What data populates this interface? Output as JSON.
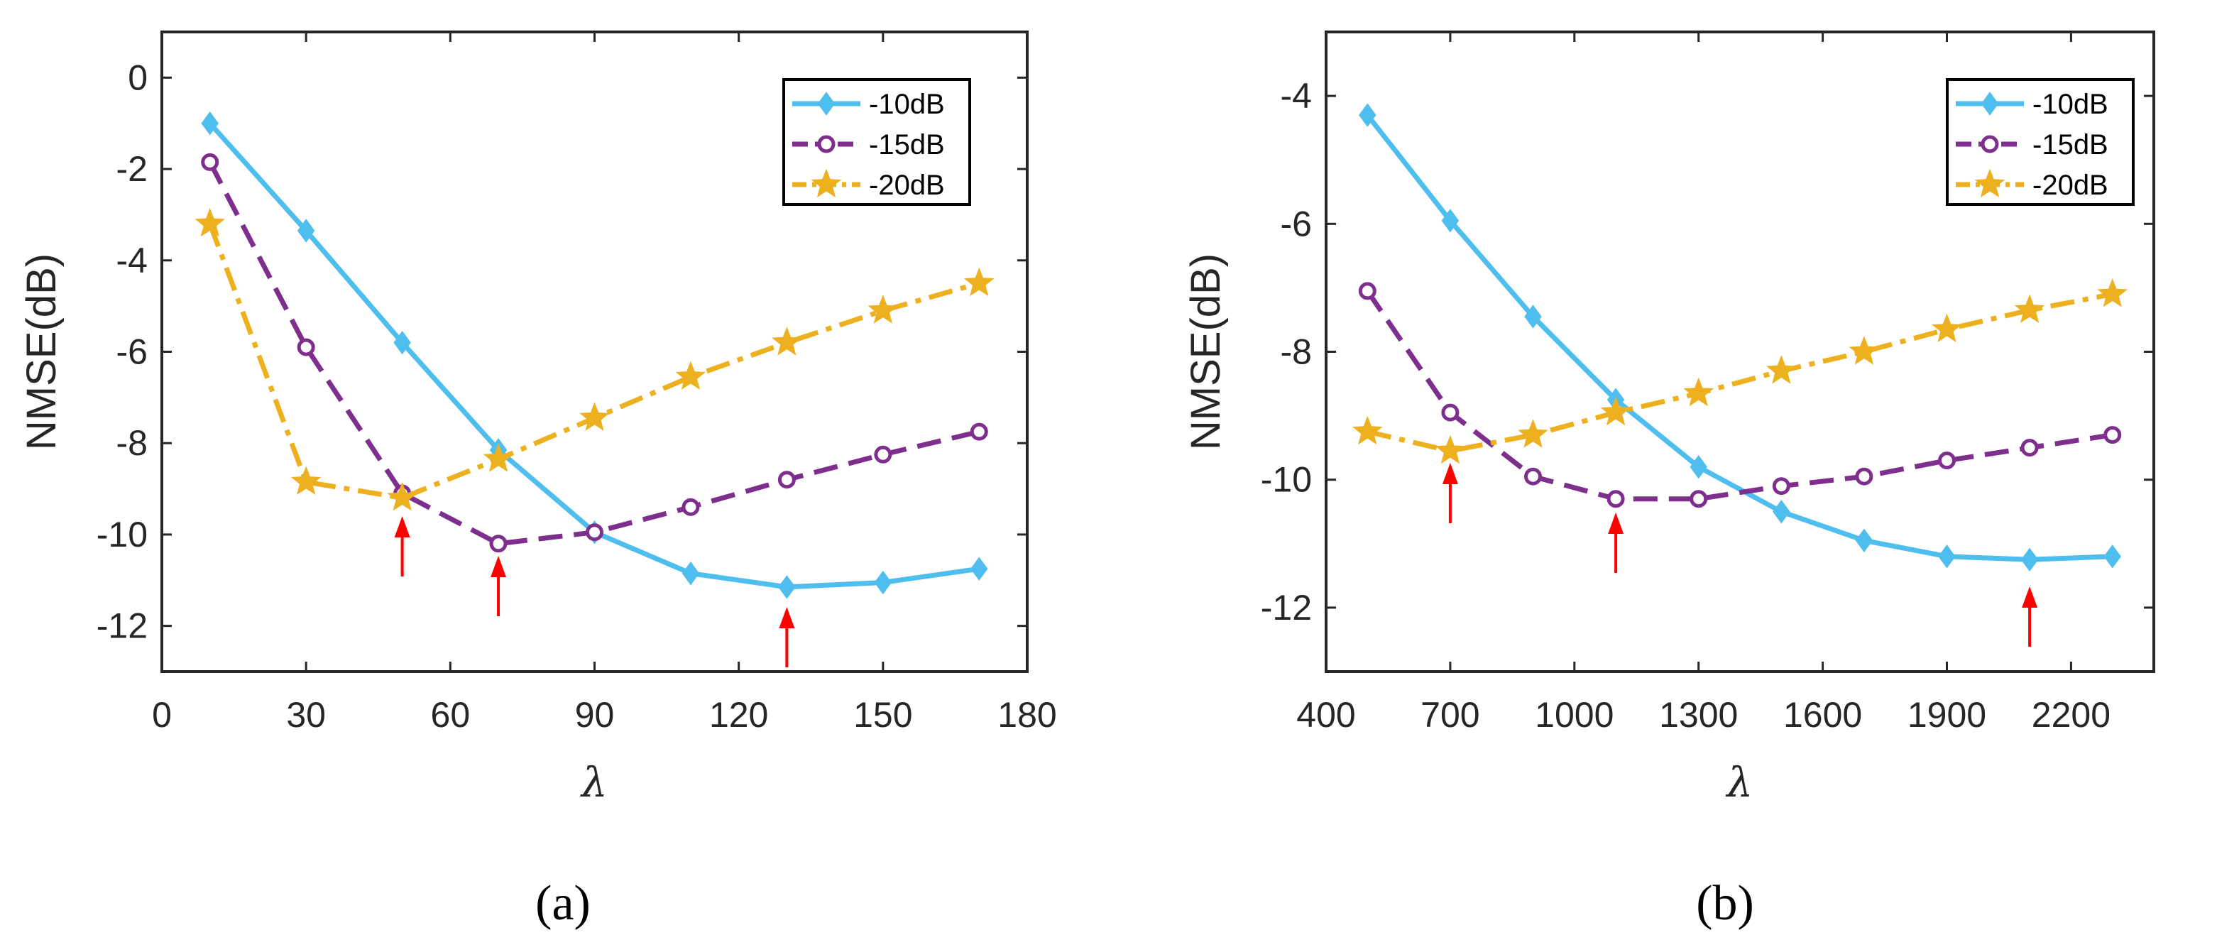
{
  "colors": {
    "-10dB": "#4DBEEE",
    "-15dB": "#7E2F8E",
    "-20dB": "#EDB120",
    "arrow": "#FF0000",
    "axis": "#262626"
  },
  "chart_data": [
    {
      "type": "line",
      "caption": "(a)",
      "xlabel": "λ",
      "ylabel": "NMSE(dB)",
      "xlim": [
        0,
        180
      ],
      "ylim": [
        -13,
        1
      ],
      "xticks": [
        0,
        30,
        60,
        90,
        120,
        150,
        180
      ],
      "yticks": [
        0,
        -2,
        -4,
        -6,
        -8,
        -10,
        -12
      ],
      "legend_position": "top-right",
      "series": [
        {
          "name": "-10dB",
          "marker": "diamond",
          "line": "solid",
          "x": [
            10,
            30,
            50,
            70,
            90,
            110,
            130,
            150,
            170
          ],
          "y": [
            -1.0,
            -3.35,
            -5.8,
            -8.15,
            -9.95,
            -10.85,
            -11.15,
            -11.05,
            -10.75
          ]
        },
        {
          "name": "-15dB",
          "marker": "circle",
          "line": "dashed",
          "x": [
            10,
            30,
            50,
            70,
            90,
            110,
            130,
            150,
            170
          ],
          "y": [
            -1.85,
            -5.9,
            -9.1,
            -10.2,
            -9.95,
            -9.4,
            -8.8,
            -8.25,
            -7.75
          ]
        },
        {
          "name": "-20dB",
          "marker": "star",
          "line": "dashdot",
          "x": [
            10,
            30,
            50,
            70,
            90,
            110,
            130,
            150,
            170
          ],
          "y": [
            -3.2,
            -8.85,
            -9.2,
            -8.35,
            -7.45,
            -6.55,
            -5.8,
            -5.1,
            -4.5
          ]
        }
      ],
      "arrows_at_x": [
        50,
        70,
        130
      ]
    },
    {
      "type": "line",
      "caption": "(b)",
      "xlabel": "λ",
      "ylabel": "NMSE(dB)",
      "xlim": [
        400,
        2400
      ],
      "ylim": [
        -13,
        -3
      ],
      "xticks": [
        400,
        700,
        1000,
        1300,
        1600,
        1900,
        2200
      ],
      "yticks": [
        -4,
        -6,
        -8,
        -10,
        -12
      ],
      "legend_position": "top-right",
      "series": [
        {
          "name": "-10dB",
          "marker": "diamond",
          "line": "solid",
          "x": [
            500,
            700,
            900,
            1100,
            1300,
            1500,
            1700,
            1900,
            2100,
            2300
          ],
          "y": [
            -4.3,
            -5.95,
            -7.45,
            -8.75,
            -9.8,
            -10.5,
            -10.95,
            -11.2,
            -11.25,
            -11.2
          ]
        },
        {
          "name": "-15dB",
          "marker": "circle",
          "line": "dashed",
          "x": [
            500,
            700,
            900,
            1100,
            1300,
            1500,
            1700,
            1900,
            2100,
            2300
          ],
          "y": [
            -7.05,
            -8.95,
            -9.95,
            -10.3,
            -10.3,
            -10.1,
            -9.95,
            -9.7,
            -9.5,
            -9.3
          ]
        },
        {
          "name": "-20dB",
          "marker": "star",
          "line": "dashdot",
          "x": [
            500,
            700,
            900,
            1100,
            1300,
            1500,
            1700,
            1900,
            2100,
            2300
          ],
          "y": [
            -9.25,
            -9.55,
            -9.3,
            -8.95,
            -8.65,
            -8.3,
            -8.0,
            -7.65,
            -7.35,
            -7.1
          ]
        }
      ],
      "arrows_at_x": [
        700,
        1100,
        2100
      ]
    }
  ]
}
